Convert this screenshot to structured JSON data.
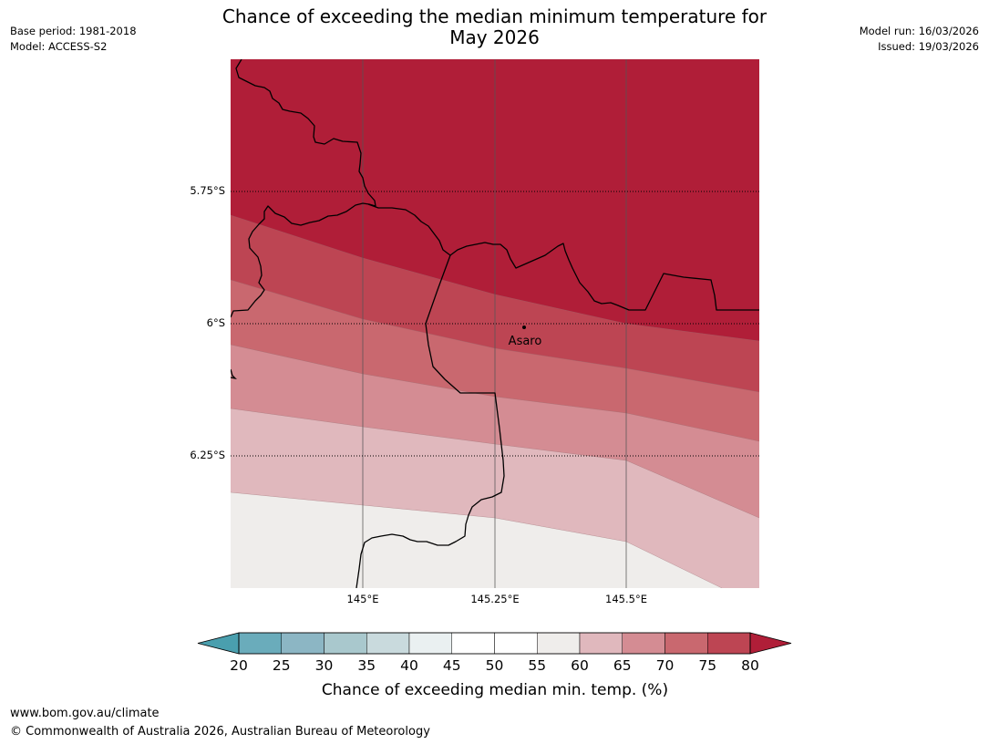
{
  "header": {
    "title_line1": "Chance of exceeding the median minimum temperature for",
    "title_line2": "May 2026",
    "base_period": "Base period: 1981-2018",
    "model": "Model: ACCESS-S2",
    "model_run": "Model run: 16/03/2026",
    "issued": "Issued: 19/03/2026"
  },
  "map": {
    "lat_labels": [
      "5.75°S",
      "6°S",
      "6.25°S"
    ],
    "lon_labels": [
      "145°E",
      "145.25°E",
      "145.5°E"
    ],
    "place": {
      "name": "Asaro"
    }
  },
  "colorbar": {
    "ticks": [
      "20",
      "25",
      "30",
      "35",
      "40",
      "45",
      "50",
      "55",
      "60",
      "65",
      "70",
      "75",
      "80"
    ],
    "colors": [
      "#6aacbb",
      "#8cb6c4",
      "#a9c8cd",
      "#c9dadd",
      "#eaf0f1",
      "#ffffff",
      "#ffffff",
      "#efedeb",
      "#e0b8bd",
      "#d48c93",
      "#c9686f",
      "#bd4553",
      "#b01e38"
    ],
    "under_color": "#4a9fae",
    "over_color": "#b01e38",
    "label": "Chance of exceeding median min. temp. (%)"
  },
  "footer": {
    "url": "www.bom.gov.au/climate",
    "copyright": "© Commonwealth of Australia 2026, Australian Bureau of Meteorology"
  }
}
